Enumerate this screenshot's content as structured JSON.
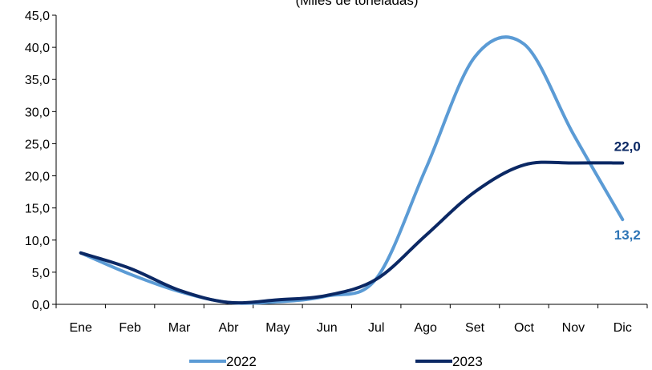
{
  "chart_data": {
    "type": "line",
    "subtitle": "(Miles de toneladas)",
    "categories": [
      "Ene",
      "Feb",
      "Mar",
      "Abr",
      "May",
      "Jun",
      "Jul",
      "Ago",
      "Set",
      "Oct",
      "Nov",
      "Dic"
    ],
    "ylim": [
      0,
      45
    ],
    "yticks": [
      "0,0",
      "5,0",
      "10,0",
      "15,0",
      "20,0",
      "25,0",
      "30,0",
      "35,0",
      "40,0",
      "45,0"
    ],
    "grid": false,
    "legend_position": "bottom",
    "series": [
      {
        "name": "2022",
        "color": "#5b9bd5",
        "values": [
          8.0,
          4.7,
          2.0,
          0.3,
          0.4,
          1.3,
          4.0,
          21.0,
          38.5,
          40.5,
          26.5,
          13.2
        ],
        "end_label": "13,2",
        "label_color": "#2e75b6"
      },
      {
        "name": "2023",
        "color": "#0b2864",
        "values": [
          8.0,
          5.6,
          2.2,
          0.3,
          0.7,
          1.4,
          3.9,
          10.7,
          17.5,
          21.7,
          22.0,
          22.0
        ],
        "end_label": "22,0",
        "label_color": "#0b2864"
      }
    ]
  }
}
